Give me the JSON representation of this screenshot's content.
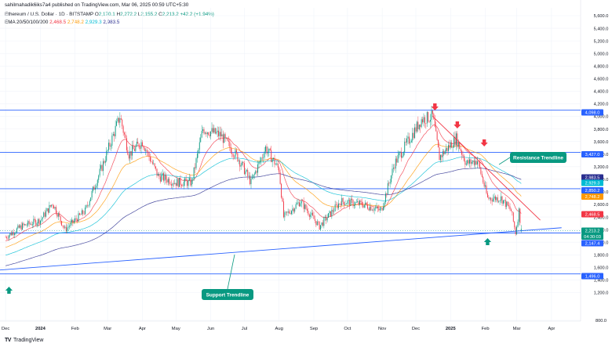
{
  "header": {
    "attribution": "sahilmahadik6iks7a4 published on TradingView.com, Mar 06, 2025 00:59 UTC+5:30",
    "symbol": "Ethereum / U.S. Dollar · 1D · BITSTAMP",
    "ohlc": {
      "o_label": "O",
      "o": "2,170.1",
      "h_label": "H",
      "h": "2,272.2",
      "l_label": "L",
      "l": "2,155.2",
      "c_label": "C",
      "c": "2,213.2",
      "change": "+42.2 (+1.94%)"
    },
    "ema_label": "EMA 20/50/100/200",
    "ema_values": [
      "2,468.5",
      "2,748.2",
      "2,929.3",
      "2,983.5"
    ]
  },
  "brand": {
    "logo": "TV",
    "name": "TradingView"
  },
  "colors": {
    "up": "#089981",
    "down": "#f23645",
    "ema20": "#f23645",
    "ema50": "#ff9800",
    "ema100": "#00bcd4",
    "ema200": "#2a2e8f",
    "level": "#2962ff",
    "trend": "#2962ff",
    "resistance": "#f23645"
  },
  "chart_data": {
    "type": "candlestick",
    "symbol": "ETH/USD",
    "timeframe": "1D",
    "ylim": [
      800,
      5600
    ],
    "y_ticks": [
      800,
      1200,
      1400,
      1600,
      1800,
      2000,
      2200,
      2400,
      2600,
      2800,
      3000,
      3200,
      3400,
      3600,
      3800,
      4000,
      4200,
      4400,
      4600,
      4800,
      5000,
      5200,
      5400,
      5600
    ],
    "y_tick_labels": [
      "800.0",
      "1,200.0",
      "1,400.0",
      "1,600.0",
      "1,800.0",
      "2,000.0",
      "2,200.0",
      "2,400.0",
      "2,600.0",
      "2,800.0",
      "3,000.0",
      "3,200.0",
      "3,400.0",
      "3,600.0",
      "3,800.0",
      "4,000.0",
      "4,200.0",
      "4,400.0",
      "4,600.0",
      "4,800.0",
      "5,000.0",
      "5,200.0",
      "5,400.0",
      "5,600.0"
    ],
    "x_labels": [
      "Dec",
      "2024",
      "Feb",
      "Mar",
      "Apr",
      "May",
      "Jun",
      "Jul",
      "Aug",
      "Sep",
      "Oct",
      "Nov",
      "Dec",
      "2025",
      "Feb",
      "Mar",
      "Apr"
    ],
    "price_path": [
      {
        "date": "2023-12-01",
        "close": 2080
      },
      {
        "date": "2023-12-15",
        "close": 2250
      },
      {
        "date": "2024-01-01",
        "close": 2350
      },
      {
        "date": "2024-01-12",
        "close": 2620
      },
      {
        "date": "2024-01-23",
        "close": 2200
      },
      {
        "date": "2024-02-10",
        "close": 2500
      },
      {
        "date": "2024-02-25",
        "close": 3200
      },
      {
        "date": "2024-03-12",
        "close": 4000
      },
      {
        "date": "2024-03-20",
        "close": 3400
      },
      {
        "date": "2024-04-01",
        "close": 3600
      },
      {
        "date": "2024-04-15",
        "close": 3050
      },
      {
        "date": "2024-05-01",
        "close": 2950
      },
      {
        "date": "2024-05-15",
        "close": 2950
      },
      {
        "date": "2024-05-25",
        "close": 3800
      },
      {
        "date": "2024-06-10",
        "close": 3700
      },
      {
        "date": "2024-06-25",
        "close": 3350
      },
      {
        "date": "2024-07-07",
        "close": 2950
      },
      {
        "date": "2024-07-20",
        "close": 3500
      },
      {
        "date": "2024-08-01",
        "close": 3150
      },
      {
        "date": "2024-08-05",
        "close": 2400
      },
      {
        "date": "2024-08-20",
        "close": 2650
      },
      {
        "date": "2024-09-06",
        "close": 2250
      },
      {
        "date": "2024-09-25",
        "close": 2650
      },
      {
        "date": "2024-10-15",
        "close": 2600
      },
      {
        "date": "2024-10-31",
        "close": 2500
      },
      {
        "date": "2024-11-12",
        "close": 3250
      },
      {
        "date": "2024-12-06",
        "close": 3950
      },
      {
        "date": "2024-12-16",
        "close": 4000
      },
      {
        "date": "2024-12-22",
        "close": 3350
      },
      {
        "date": "2025-01-06",
        "close": 3650
      },
      {
        "date": "2025-01-15",
        "close": 3250
      },
      {
        "date": "2025-01-25",
        "close": 3300
      },
      {
        "date": "2025-02-03",
        "close": 2700
      },
      {
        "date": "2025-02-15",
        "close": 2700
      },
      {
        "date": "2025-02-24",
        "close": 2500
      },
      {
        "date": "2025-02-28",
        "close": 2150
      },
      {
        "date": "2025-03-03",
        "close": 2500
      },
      {
        "date": "2025-03-05",
        "close": 2213.2
      }
    ],
    "ema_series": [
      {
        "name": "EMA 20",
        "last": 2468.5
      },
      {
        "name": "EMA 50",
        "last": 2748.2
      },
      {
        "name": "EMA 100",
        "last": 2929.3
      },
      {
        "name": "EMA 200",
        "last": 2983.5
      }
    ],
    "horizontal_levels": [
      4098.0,
      3427.0,
      2850.2,
      2147.4,
      1496.0
    ],
    "trendlines": [
      {
        "name": "Support Trendline",
        "from": {
          "date": "2023-11-20",
          "price": 1550
        },
        "to": {
          "date": "2025-04-10",
          "price": 2230
        }
      },
      {
        "name": "Resistance Trendline",
        "from": {
          "date": "2024-12-16",
          "price": 4000
        },
        "to": {
          "date": "2025-03-22",
          "price": 2350
        }
      }
    ],
    "annotations": [
      {
        "text": "Resistance Trendline"
      },
      {
        "text": "Support Trendline"
      }
    ],
    "price_tags": [
      {
        "label": "4,098.0",
        "price": 4098.0,
        "color": "#2962ff"
      },
      {
        "label": "3,427.0",
        "price": 3427.0,
        "color": "#2962ff"
      },
      {
        "label": "2,983.5",
        "price": 2983.5,
        "color": "#2a2e8f"
      },
      {
        "label": "2,929.3",
        "price": 2929.3,
        "color": "#00bcd4"
      },
      {
        "label": "2,850.2",
        "price": 2850.2,
        "color": "#2962ff"
      },
      {
        "label": "2,748.2",
        "price": 2748.2,
        "color": "#ff9800"
      },
      {
        "label": "2,468.5",
        "price": 2468.5,
        "color": "#f23645"
      },
      {
        "label": "2,213.2",
        "price": 2213.2,
        "color": "#089981"
      },
      {
        "label": "04:30:03",
        "price": 2170.0,
        "color": "#089981"
      },
      {
        "label": "2,147.4",
        "price": 2147.4,
        "color": "#2962ff"
      },
      {
        "label": "1,496.0",
        "price": 1496.0,
        "color": "#2962ff"
      }
    ],
    "arrows_down": [
      {
        "date": "2024-12-18"
      },
      {
        "date": "2025-01-07"
      },
      {
        "date": "2025-01-31"
      }
    ],
    "arrows_up": [
      {
        "date": "2023-12-04"
      },
      {
        "date": "2025-02-03"
      }
    ],
    "grid": true
  }
}
